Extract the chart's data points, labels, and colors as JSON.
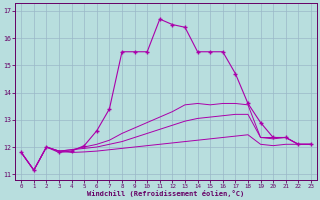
{
  "xlabel": "Windchill (Refroidissement éolien,°C)",
  "background_color": "#b8dede",
  "grid_color": "#9ab8c8",
  "line_color": "#aa00aa",
  "x_hours": [
    0,
    1,
    2,
    3,
    4,
    5,
    6,
    7,
    8,
    9,
    10,
    11,
    12,
    13,
    14,
    15,
    16,
    17,
    18,
    19,
    20,
    21,
    22,
    23
  ],
  "main_series": [
    11.8,
    11.15,
    12.0,
    11.8,
    11.85,
    12.05,
    12.6,
    13.4,
    15.5,
    15.5,
    15.5,
    16.7,
    16.5,
    16.4,
    15.5,
    15.5,
    15.5,
    14.7,
    13.6,
    12.9,
    12.35,
    12.35,
    12.1,
    12.1
  ],
  "line2": [
    11.8,
    11.15,
    12.0,
    11.85,
    11.9,
    12.0,
    12.1,
    12.25,
    12.5,
    12.7,
    12.9,
    13.1,
    13.3,
    13.55,
    13.6,
    13.55,
    13.6,
    13.6,
    13.55,
    12.35,
    12.35,
    12.35,
    12.1,
    12.1
  ],
  "line3": [
    11.8,
    11.15,
    12.0,
    11.85,
    11.9,
    11.95,
    12.0,
    12.1,
    12.2,
    12.35,
    12.5,
    12.65,
    12.8,
    12.95,
    13.05,
    13.1,
    13.15,
    13.2,
    13.2,
    12.35,
    12.3,
    12.35,
    12.1,
    12.1
  ],
  "line4": [
    11.8,
    11.15,
    12.0,
    11.85,
    11.8,
    11.82,
    11.85,
    11.9,
    11.95,
    12.0,
    12.05,
    12.1,
    12.15,
    12.2,
    12.25,
    12.3,
    12.35,
    12.4,
    12.45,
    12.1,
    12.05,
    12.1,
    12.1,
    12.1
  ],
  "ylim": [
    10.8,
    17.3
  ],
  "xlim": [
    -0.5,
    23.5
  ],
  "yticks": [
    11,
    12,
    13,
    14,
    15,
    16,
    17
  ],
  "xticks": [
    0,
    1,
    2,
    3,
    4,
    5,
    6,
    7,
    8,
    9,
    10,
    11,
    12,
    13,
    14,
    15,
    16,
    17,
    18,
    19,
    20,
    21,
    22,
    23
  ]
}
